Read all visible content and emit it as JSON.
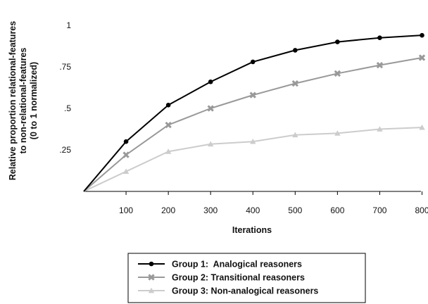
{
  "chart_data": {
    "type": "line",
    "title": "",
    "xlabel": "Iterations",
    "ylabel_lines": [
      "Relative proportion relational-features",
      "to non-relational-features",
      "(0 to 1 normalized)"
    ],
    "x": [
      0,
      100,
      200,
      300,
      400,
      500,
      600,
      700,
      800
    ],
    "x_tick_labels": [
      "100",
      "200",
      "300",
      "400",
      "500",
      "600",
      "700",
      "800"
    ],
    "y_ticks": [
      0.25,
      0.5,
      0.75,
      1
    ],
    "y_tick_labels": [
      ".25",
      ".5",
      ".75",
      "1"
    ],
    "xlim": [
      0,
      820
    ],
    "ylim": [
      0,
      1
    ],
    "grid": false,
    "legend_position": "bottom-center",
    "series": [
      {
        "name": "Group 1:  Analogical reasoners",
        "color": "#000000",
        "marker": "circle",
        "values": [
          0,
          0.3,
          0.52,
          0.66,
          0.78,
          0.85,
          0.9,
          0.925,
          0.94
        ]
      },
      {
        "name": "Group 2: Transitional reasoners",
        "color": "#999999",
        "marker": "x",
        "values": [
          0,
          0.22,
          0.4,
          0.5,
          0.58,
          0.65,
          0.71,
          0.76,
          0.805
        ]
      },
      {
        "name": "Group 3: Non-analogical reasoners",
        "color": "#cccccc",
        "marker": "triangle",
        "values": [
          0,
          0.12,
          0.24,
          0.285,
          0.3,
          0.34,
          0.35,
          0.375,
          0.385
        ]
      }
    ]
  }
}
